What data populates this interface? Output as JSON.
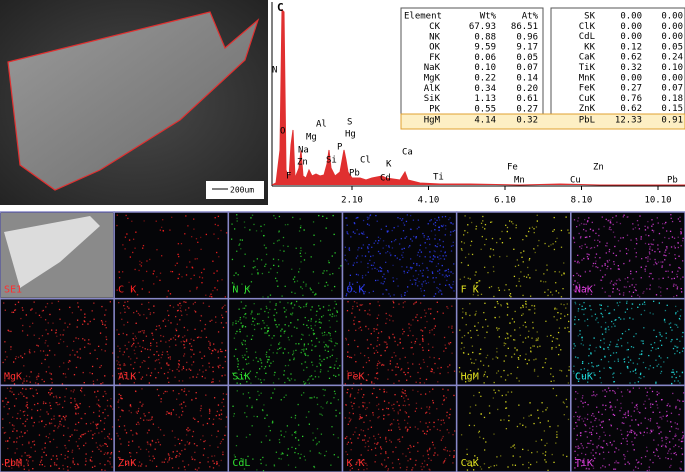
{
  "sem_image": {
    "scale_bar": "200um"
  },
  "spectrum": {
    "y_label": "C",
    "peak_labels": [
      "N",
      "O",
      "F",
      "Na",
      "Zn",
      "Mg",
      "Al",
      "Si",
      "P",
      "S",
      "Hg",
      "Pb",
      "Cl",
      "K",
      "Cd",
      "Ca",
      "Ti",
      "Mn",
      "Fe",
      "Cu",
      "Zn",
      "Pb"
    ],
    "x_ticks": [
      "2.10",
      "4.10",
      "6.10",
      "8.10",
      "10.10"
    ]
  },
  "table_left": {
    "header": [
      "Element",
      "Wt%",
      "At%"
    ],
    "rows": [
      [
        "CK",
        "67.93",
        "86.51"
      ],
      [
        "NK",
        "0.88",
        "0.96"
      ],
      [
        "OK",
        "9.59",
        "9.17"
      ],
      [
        "FK",
        "0.06",
        "0.05"
      ],
      [
        "NaK",
        "0.10",
        "0.07"
      ],
      [
        "MgK",
        "0.22",
        "0.14"
      ],
      [
        "AlK",
        "0.34",
        "0.20"
      ],
      [
        "SiK",
        "1.13",
        "0.61"
      ],
      [
        "PK",
        "0.55",
        "0.27"
      ],
      [
        "HgM",
        "4.14",
        "0.32"
      ]
    ]
  },
  "table_right": {
    "rows": [
      [
        "SK",
        "0.00",
        "0.00"
      ],
      [
        "ClK",
        "0.00",
        "0.00"
      ],
      [
        "CdL",
        "0.00",
        "0.00"
      ],
      [
        "KK",
        "0.12",
        "0.05"
      ],
      [
        "CaK",
        "0.62",
        "0.24"
      ],
      [
        "TiK",
        "0.32",
        "0.10"
      ],
      [
        "MnK",
        "0.00",
        "0.00"
      ],
      [
        "FeK",
        "0.27",
        "0.07"
      ],
      [
        "CuK",
        "0.76",
        "0.18"
      ],
      [
        "ZnK",
        "0.62",
        "0.15"
      ],
      [
        "PbL",
        "12.33",
        "0.91"
      ]
    ]
  },
  "maps": [
    {
      "label": "SE1",
      "color": "#ff3030"
    },
    {
      "label": "C K",
      "color": "#ff2020"
    },
    {
      "label": "N K",
      "color": "#30e030"
    },
    {
      "label": "O K",
      "color": "#3040ff"
    },
    {
      "label": "F K",
      "color": "#e0e020"
    },
    {
      "label": "NaK",
      "color": "#e040e0"
    },
    {
      "label": "MgK",
      "color": "#ff3030"
    },
    {
      "label": "AlK",
      "color": "#ff3030"
    },
    {
      "label": "SiK",
      "color": "#30e030"
    },
    {
      "label": "FeK",
      "color": "#ff3030"
    },
    {
      "label": "HgM",
      "color": "#e0e020"
    },
    {
      "label": "CuK",
      "color": "#20e0e0"
    },
    {
      "label": "PbM",
      "color": "#ff3030"
    },
    {
      "label": "ZnK",
      "color": "#ff3030"
    },
    {
      "label": "CdL",
      "color": "#30e030"
    },
    {
      "label": "K K",
      "color": "#ff3030"
    },
    {
      "label": "CaK",
      "color": "#e0e020"
    },
    {
      "label": "TiK",
      "color": "#e040e0"
    }
  ]
}
